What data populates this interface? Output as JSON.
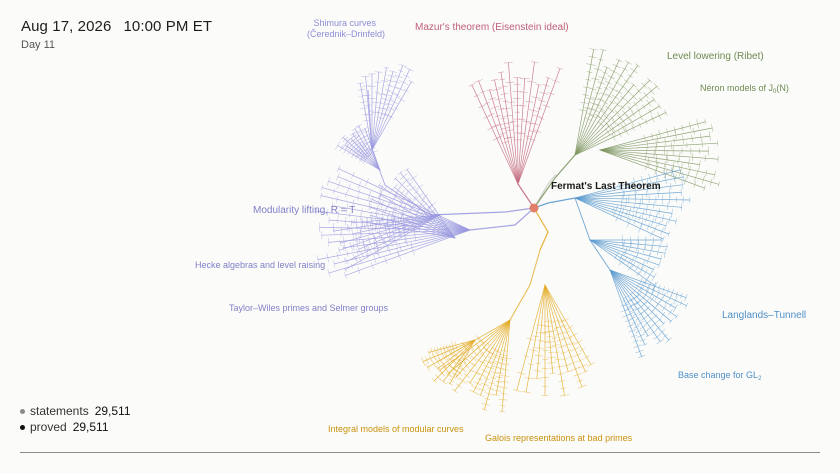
{
  "header": {
    "date": "Aug 17, 2026",
    "time": "10:00 PM ET",
    "day": "Day 11"
  },
  "stats": [
    {
      "label": "statements",
      "value": "29,511",
      "dot_color": "#8a8a8a"
    },
    {
      "label": "proved",
      "value": "29,511",
      "dot_color": "#111111"
    }
  ],
  "root": {
    "label": "Fermat's Last Theorem",
    "color": "#e0806a"
  },
  "colors": {
    "purple": "#9b9ae0",
    "red": "#c46b80",
    "green": "#7f9763",
    "blue": "#5d9bd0",
    "gold": "#e3aa22"
  },
  "labels": {
    "shimura_1": "Shimura curves",
    "shimura_2": "(Čerednik–Drinfeld)",
    "mazur": "Mazur's theorem (Eisenstein ideal)",
    "level_lowering": "Level lowering (Ribet)",
    "neron_prefix": "Néron models of J",
    "neron_sub": "0",
    "neron_suffix": "(N)",
    "modularity": "Modularity lifting, R = T",
    "hecke": "Hecke algebras and level raising",
    "taylor_wiles": "Taylor–Wiles primes and Selmer groups",
    "langlands": "Langlands–Tunnell",
    "base_change_prefix": "Base change for GL",
    "base_change_sub": "2",
    "integral": "Integral models of modular curves",
    "galois": "Galois representations at bad primes"
  }
}
